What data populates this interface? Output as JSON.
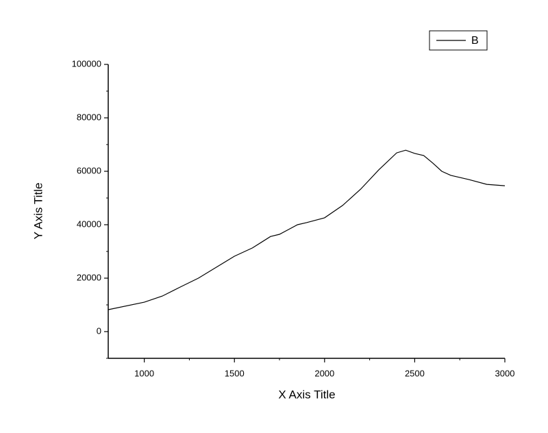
{
  "chart_data": {
    "type": "line",
    "x_label": "X Axis Title",
    "y_label": "Y Axis Title",
    "xlim": [
      800,
      3000
    ],
    "xticks": [
      1000,
      1500,
      2000,
      2500,
      3000
    ],
    "ylim": [
      -10000,
      100000
    ],
    "yticks": [
      0,
      20000,
      40000,
      60000,
      80000,
      100000
    ],
    "legend": "top-right",
    "series": [
      {
        "name": "B",
        "color": "#000000",
        "x": [
          800,
          1000,
          1100,
          1200,
          1300,
          1400,
          1500,
          1600,
          1700,
          1750,
          1800,
          1850,
          1900,
          2000,
          2100,
          2200,
          2300,
          2400,
          2450,
          2500,
          2550,
          2600,
          2650,
          2700,
          2800,
          2900,
          3000
        ],
        "values": [
          8200,
          11000,
          13300,
          16700,
          20000,
          24100,
          28200,
          31300,
          35600,
          36400,
          38200,
          40000,
          40800,
          42600,
          47200,
          53300,
          60500,
          66900,
          67900,
          66700,
          65900,
          63100,
          60000,
          58500,
          56900,
          55100,
          54600
        ]
      }
    ]
  }
}
